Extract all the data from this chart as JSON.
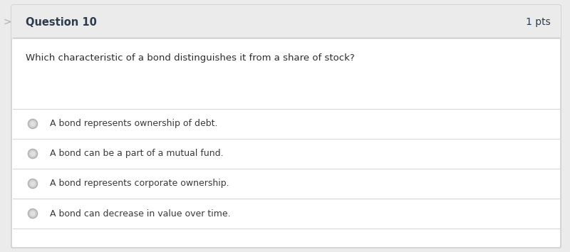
{
  "title": "Question 10",
  "pts": "1 pts",
  "question": "Which characteristic of a bond distinguishes it from a share of stock?",
  "options": [
    "A bond represents ownership of debt.",
    "A bond can be a part of a mutual fund.",
    "A bond represents corporate ownership.",
    "A bond can decrease in value over time."
  ],
  "bg_outer": "#ebebeb",
  "bg_header": "#ebebeb",
  "bg_body": "#ffffff",
  "border_color": "#c8c8c8",
  "header_text_color": "#2d3b4e",
  "question_text_color": "#2c2c2c",
  "option_text_color": "#3a3a3a",
  "divider_color": "#d8d8d8",
  "radio_fill": "#d0d0d0",
  "radio_edge": "#b0b0b0",
  "arrow_color": "#b0b0b0",
  "title_fontsize": 10.5,
  "pts_fontsize": 10,
  "question_fontsize": 9.5,
  "option_fontsize": 9.0,
  "fig_width": 8.0,
  "fig_height": 3.54
}
